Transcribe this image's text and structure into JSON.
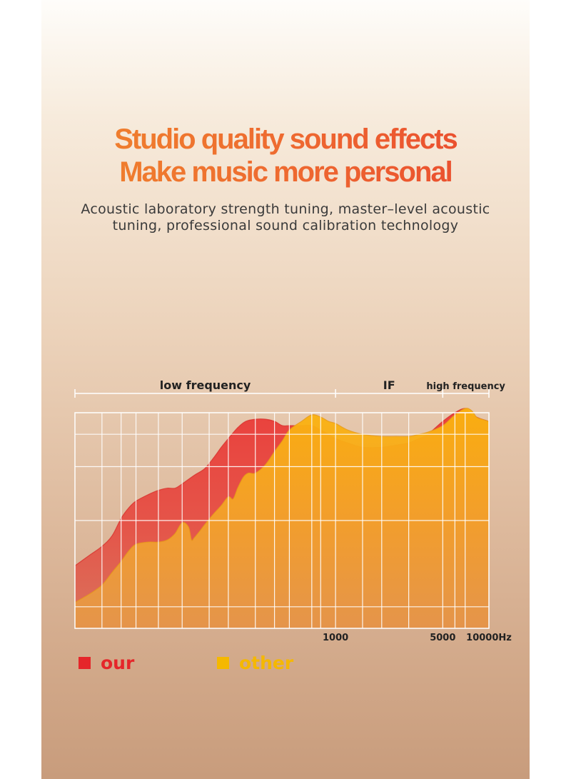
{
  "headline": {
    "line1": "Studio quality sound effects",
    "line2": "Make music more personal"
  },
  "subtitle": {
    "line1": "Acoustic laboratory strength tuning, master–level acoustic",
    "line2": "tuning, professional sound calibration technology"
  },
  "colors": {
    "headline_start": "#f08a2c",
    "headline_end": "#e8402e",
    "our": "#e5262a",
    "other": "#f5b800",
    "grid": "#ffffff"
  },
  "chart_data": {
    "type": "area",
    "bands": [
      {
        "label": "low frequency",
        "from": 20,
        "to": 1000
      },
      {
        "label": "IF",
        "from": 1000,
        "to": 5000
      },
      {
        "label": "high frequency",
        "from": 5000,
        "to": 10000
      }
    ],
    "x_scale": "log",
    "xlim": [
      20,
      10000
    ],
    "x_ticks": [
      {
        "value": 1000,
        "label": "1000"
      },
      {
        "value": 5000,
        "label": "5000"
      },
      {
        "value": 10000,
        "label": "10000Hz"
      }
    ],
    "ylim": [
      0,
      100
    ],
    "series": [
      {
        "name": "our",
        "color": "#e5262a",
        "x": [
          20,
          25,
          30,
          35,
          40,
          45,
          50,
          60,
          70,
          80,
          90,
          100,
          120,
          140,
          160,
          180,
          200,
          230,
          260,
          300,
          350,
          400,
          450,
          500,
          600,
          700,
          800,
          900,
          1000,
          1200,
          1500,
          2000,
          2500,
          3000,
          3500,
          4000,
          5000,
          6000,
          7000,
          7700,
          8300,
          9000,
          10000
        ],
        "values": [
          29,
          34,
          38,
          43,
          51,
          56,
          59,
          62,
          64,
          65,
          65,
          67,
          71,
          74,
          79,
          84,
          88,
          93,
          96,
          97,
          97,
          96,
          94,
          94,
          94,
          94,
          92,
          90,
          88,
          86,
          84,
          84,
          85,
          86,
          88,
          90,
          96,
          100,
          102,
          99,
          98,
          97,
          96
        ]
      },
      {
        "name": "other",
        "color": "#f5b800",
        "x": [
          20,
          25,
          30,
          35,
          40,
          45,
          50,
          60,
          70,
          80,
          90,
          100,
          110,
          115,
          120,
          130,
          140,
          160,
          180,
          200,
          215,
          230,
          250,
          270,
          300,
          350,
          400,
          450,
          500,
          600,
          700,
          800,
          900,
          1000,
          1200,
          1500,
          2000,
          2500,
          3000,
          3500,
          4000,
          5000,
          6000,
          7000,
          7700,
          8300,
          9000,
          10000
        ],
        "values": [
          12,
          16,
          20,
          26,
          31,
          36,
          39,
          40,
          40,
          41,
          44,
          49,
          47,
          41,
          42,
          45,
          48,
          53,
          57,
          61,
          60,
          65,
          70,
          72,
          72,
          76,
          82,
          87,
          92,
          96,
          99,
          98,
          96,
          95,
          92,
          90,
          89,
          89,
          89,
          90,
          91,
          94,
          99,
          102,
          101,
          98,
          97,
          96
        ]
      }
    ]
  },
  "legend": {
    "our": "our",
    "other": "other"
  }
}
